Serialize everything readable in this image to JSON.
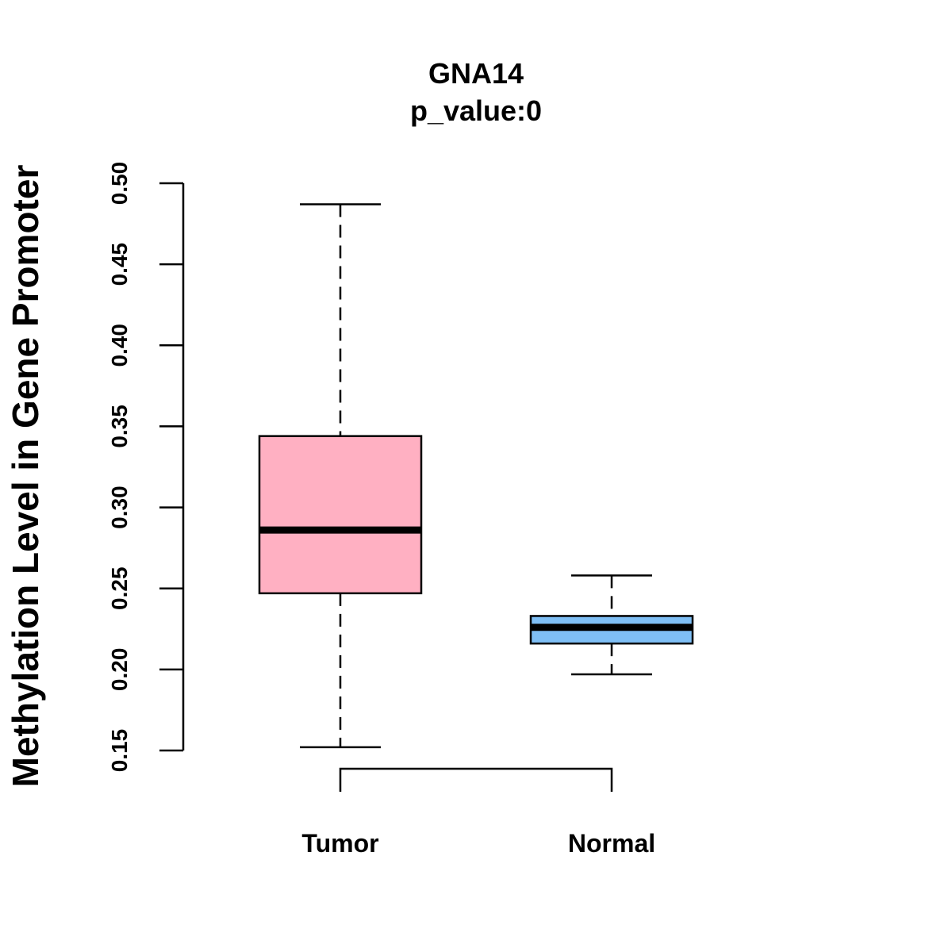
{
  "chart_data": {
    "type": "boxplot",
    "title": "GNA14",
    "subtitle": "p_value:0",
    "xlabel": "",
    "ylabel": "Methylation Level in Gene Promoter",
    "ylim": [
      0.15,
      0.5
    ],
    "yticks": [
      "0.15",
      "0.20",
      "0.25",
      "0.30",
      "0.35",
      "0.40",
      "0.45",
      "0.50"
    ],
    "grid": false,
    "categories": [
      "Tumor",
      "Normal"
    ],
    "boxes": [
      {
        "name": "Tumor",
        "whisker_low": 0.152,
        "q1": 0.247,
        "median": 0.286,
        "q3": 0.344,
        "whisker_high": 0.487,
        "color": "#FFB0C2"
      },
      {
        "name": "Normal",
        "whisker_low": 0.197,
        "q1": 0.216,
        "median": 0.226,
        "q3": 0.233,
        "whisker_high": 0.258,
        "color": "#7FBFF5"
      }
    ],
    "comparison_bracket": {
      "from": "Tumor",
      "to": "Normal",
      "label": ""
    }
  }
}
